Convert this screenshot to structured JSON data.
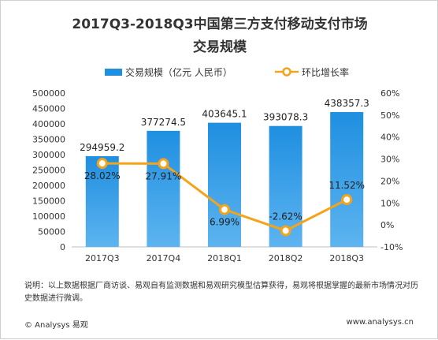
{
  "title_line1": "2017Q3-2018Q3中国第三方支付移动支付市场",
  "title_line2": "交易规模",
  "legend": {
    "bar_label": "交易规模（亿元 人民币）",
    "line_label": "环比增长率"
  },
  "note": "说明：以上数据根据厂商访谈、易观自有监测数据和易观研究模型估算获得，易观将根据掌握的最新市场情况对历史数据进行微调。",
  "footer_left": "© Analysys 易观",
  "footer_right": "www.analysys.cn",
  "colors": {
    "bar": "#1f8fe0",
    "bar_light": "#5db4f0",
    "line": "#f5a31a"
  },
  "chart_data": {
    "type": "bar",
    "categories": [
      "2017Q3",
      "2017Q4",
      "2018Q1",
      "2018Q2",
      "2018Q3"
    ],
    "series": [
      {
        "name": "交易规模（亿元 人民币）",
        "type": "bar",
        "axis": "left",
        "values": [
          294959.2,
          377274.5,
          403645.1,
          393078.3,
          438357.3
        ],
        "labels": [
          "294959.2",
          "377274.5",
          "403645.1",
          "393078.3",
          "438357.3"
        ]
      },
      {
        "name": "环比增长率",
        "type": "line",
        "axis": "right",
        "values": [
          28.02,
          27.91,
          6.99,
          -2.62,
          11.52
        ],
        "labels": [
          "28.02%",
          "27.91%",
          "6.99%",
          "-2.62%",
          "11.52%"
        ]
      }
    ],
    "y_left": {
      "min": 0,
      "max": 500000,
      "ticks": [
        "0",
        "50000",
        "100000",
        "150000",
        "200000",
        "250000",
        "300000",
        "350000",
        "400000",
        "450000",
        "500000"
      ]
    },
    "y_right": {
      "min": -10,
      "max": 60,
      "ticks": [
        "-10%",
        "0%",
        "10%",
        "20%",
        "30%",
        "40%",
        "50%",
        "60%"
      ]
    },
    "grid": false,
    "legend_position": "top"
  }
}
